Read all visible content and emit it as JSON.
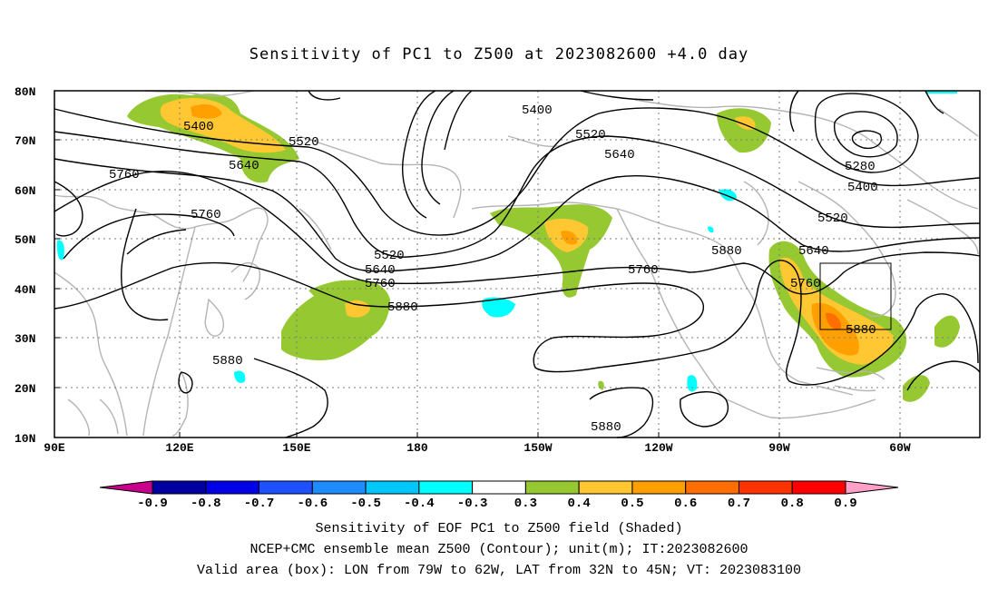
{
  "title": "Sensitivity of PC1 to Z500 at 2023082600 +4.0 day",
  "lat_labels": [
    "80N",
    "70N",
    "60N",
    "50N",
    "40N",
    "30N",
    "20N",
    "10N"
  ],
  "lon_labels": [
    "90E",
    "120E",
    "150E",
    "180",
    "150W",
    "120W",
    "90W",
    "60W"
  ],
  "contour_labels": [
    "5400",
    "5520",
    "5640",
    "5760",
    "5760",
    "5520",
    "5640",
    "5760",
    "5880",
    "5400",
    "5520",
    "5640",
    "5280",
    "5400",
    "5520",
    "5880",
    "5760",
    "5640",
    "5760",
    "5880",
    "5880",
    "5880"
  ],
  "colorbar": {
    "labels": [
      "-0.9",
      "-0.8",
      "-0.7",
      "-0.6",
      "-0.5",
      "-0.4",
      "-0.3",
      "0.3",
      "0.4",
      "0.5",
      "0.6",
      "0.7",
      "0.8",
      "0.9"
    ],
    "colors": [
      "#c8008c",
      "#0000a0",
      "#0000e6",
      "#1e50ff",
      "#1e8cff",
      "#00c8ff",
      "#00ffff",
      "#ffffff",
      "#96c832",
      "#ffc832",
      "#ffa000",
      "#ff6e00",
      "#ff3200",
      "#ff0000",
      "#ffa0c8"
    ]
  },
  "captions": {
    "line1": "Sensitivity of EOF PC1 to Z500 field (Shaded)",
    "line2": "NCEP+CMC ensemble mean Z500 (Contour); unit(m); IT:2023082600",
    "line3": "Valid area (box): LON from 79W to 62W, LAT from 32N to 45N; VT: 2023083100"
  }
}
